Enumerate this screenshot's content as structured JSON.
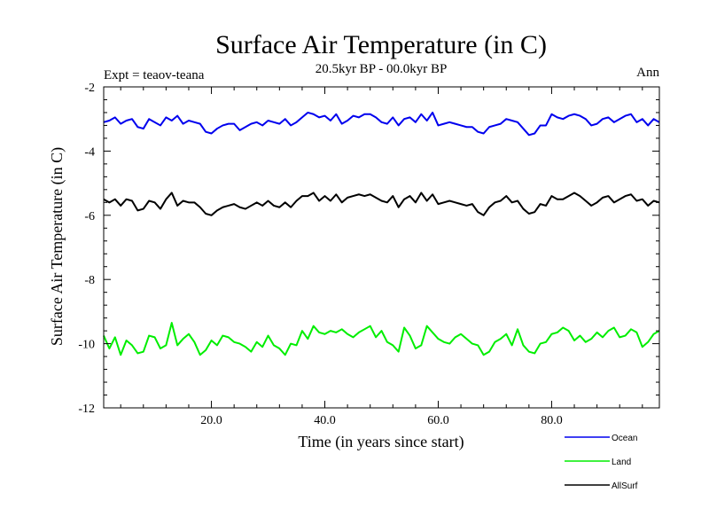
{
  "chart_data": {
    "type": "line",
    "title": "Surface Air Temperature (in C)",
    "subtitle": "20.5kyr BP - 00.0kyr BP",
    "annotation_left": "Expt = teaov-teana",
    "annotation_right": "Ann",
    "xlabel": "Time (in years since start)",
    "ylabel": "Surface Air Temperature (in C)",
    "xlim": [
      1,
      99
    ],
    "ylim": [
      -12,
      -2
    ],
    "x_ticks": [
      20,
      40,
      60,
      80
    ],
    "x_tick_labels": [
      "20.0",
      "40.0",
      "60.0",
      "80.0"
    ],
    "y_ticks": [
      -12,
      -10,
      -8,
      -6,
      -4,
      -2
    ],
    "y_tick_labels": [
      "-12",
      "-10",
      "-8",
      "-6",
      "-4",
      "-2"
    ],
    "grid": false,
    "legend_position": "bottom-right",
    "x_start": 1,
    "x_step": 1,
    "series": [
      {
        "name": "Ocean",
        "color": "#0000ee",
        "values": [
          -3.1,
          -3.05,
          -2.95,
          -3.15,
          -3.05,
          -3.0,
          -3.25,
          -3.3,
          -3.0,
          -3.1,
          -3.2,
          -2.95,
          -3.05,
          -2.9,
          -3.15,
          -3.05,
          -3.1,
          -3.15,
          -3.4,
          -3.45,
          -3.3,
          -3.2,
          -3.15,
          -3.15,
          -3.35,
          -3.25,
          -3.15,
          -3.1,
          -3.2,
          -3.05,
          -3.1,
          -3.15,
          -3.0,
          -3.2,
          -3.1,
          -2.95,
          -2.8,
          -2.85,
          -2.95,
          -2.9,
          -3.05,
          -2.85,
          -3.15,
          -3.05,
          -2.9,
          -2.95,
          -2.85,
          -2.85,
          -2.95,
          -3.1,
          -3.15,
          -2.95,
          -3.2,
          -3.0,
          -2.95,
          -3.1,
          -2.85,
          -3.05,
          -2.8,
          -3.2,
          -3.15,
          -3.1,
          -3.15,
          -3.2,
          -3.25,
          -3.25,
          -3.4,
          -3.45,
          -3.25,
          -3.2,
          -3.15,
          -3.0,
          -3.05,
          -3.1,
          -3.3,
          -3.5,
          -3.45,
          -3.2,
          -3.2,
          -2.85,
          -2.95,
          -3.0,
          -2.9,
          -2.85,
          -2.9,
          -3.0,
          -3.2,
          -3.15,
          -3.0,
          -2.95,
          -3.1,
          -3.0,
          -2.9,
          -2.85,
          -3.1,
          -3.0,
          -3.2,
          -3.0,
          -3.1
        ]
      },
      {
        "name": "Land",
        "color": "#00ee00",
        "values": [
          -9.75,
          -10.15,
          -9.8,
          -10.35,
          -9.9,
          -10.05,
          -10.3,
          -10.25,
          -9.75,
          -9.8,
          -10.15,
          -10.05,
          -9.35,
          -10.05,
          -9.85,
          -9.7,
          -9.95,
          -10.35,
          -10.2,
          -9.9,
          -10.05,
          -9.75,
          -9.8,
          -9.95,
          -10.0,
          -10.1,
          -10.25,
          -9.95,
          -10.1,
          -9.75,
          -10.05,
          -10.15,
          -10.35,
          -10.0,
          -10.05,
          -9.6,
          -9.85,
          -9.45,
          -9.65,
          -9.7,
          -9.6,
          -9.65,
          -9.55,
          -9.7,
          -9.8,
          -9.65,
          -9.55,
          -9.45,
          -9.8,
          -9.6,
          -9.95,
          -10.05,
          -10.25,
          -9.5,
          -9.75,
          -10.15,
          -10.05,
          -9.45,
          -9.65,
          -9.85,
          -9.95,
          -10.0,
          -9.8,
          -9.7,
          -9.85,
          -10.0,
          -10.05,
          -10.35,
          -10.25,
          -9.95,
          -9.85,
          -9.7,
          -10.05,
          -9.55,
          -10.05,
          -10.25,
          -10.3,
          -10.0,
          -9.95,
          -9.7,
          -9.65,
          -9.5,
          -9.6,
          -9.9,
          -9.75,
          -9.95,
          -9.85,
          -9.65,
          -9.8,
          -9.6,
          -9.5,
          -9.8,
          -9.75,
          -9.55,
          -9.65,
          -10.1,
          -9.95,
          -9.7,
          -9.6
        ]
      },
      {
        "name": "AllSurf",
        "color": "#000000",
        "values": [
          -5.5,
          -5.6,
          -5.5,
          -5.7,
          -5.5,
          -5.55,
          -5.85,
          -5.8,
          -5.55,
          -5.6,
          -5.8,
          -5.5,
          -5.3,
          -5.7,
          -5.55,
          -5.6,
          -5.6,
          -5.75,
          -5.95,
          -6.0,
          -5.85,
          -5.75,
          -5.7,
          -5.65,
          -5.75,
          -5.8,
          -5.7,
          -5.6,
          -5.7,
          -5.55,
          -5.7,
          -5.75,
          -5.6,
          -5.75,
          -5.55,
          -5.4,
          -5.4,
          -5.3,
          -5.55,
          -5.4,
          -5.55,
          -5.35,
          -5.6,
          -5.45,
          -5.4,
          -5.35,
          -5.4,
          -5.35,
          -5.45,
          -5.55,
          -5.6,
          -5.4,
          -5.75,
          -5.5,
          -5.4,
          -5.6,
          -5.3,
          -5.55,
          -5.35,
          -5.65,
          -5.6,
          -5.55,
          -5.6,
          -5.65,
          -5.7,
          -5.65,
          -5.9,
          -6.0,
          -5.75,
          -5.6,
          -5.55,
          -5.4,
          -5.6,
          -5.55,
          -5.8,
          -5.95,
          -5.9,
          -5.65,
          -5.7,
          -5.4,
          -5.5,
          -5.5,
          -5.4,
          -5.3,
          -5.4,
          -5.55,
          -5.7,
          -5.6,
          -5.45,
          -5.4,
          -5.6,
          -5.5,
          -5.4,
          -5.35,
          -5.55,
          -5.5,
          -5.7,
          -5.55,
          -5.6
        ]
      }
    ]
  }
}
